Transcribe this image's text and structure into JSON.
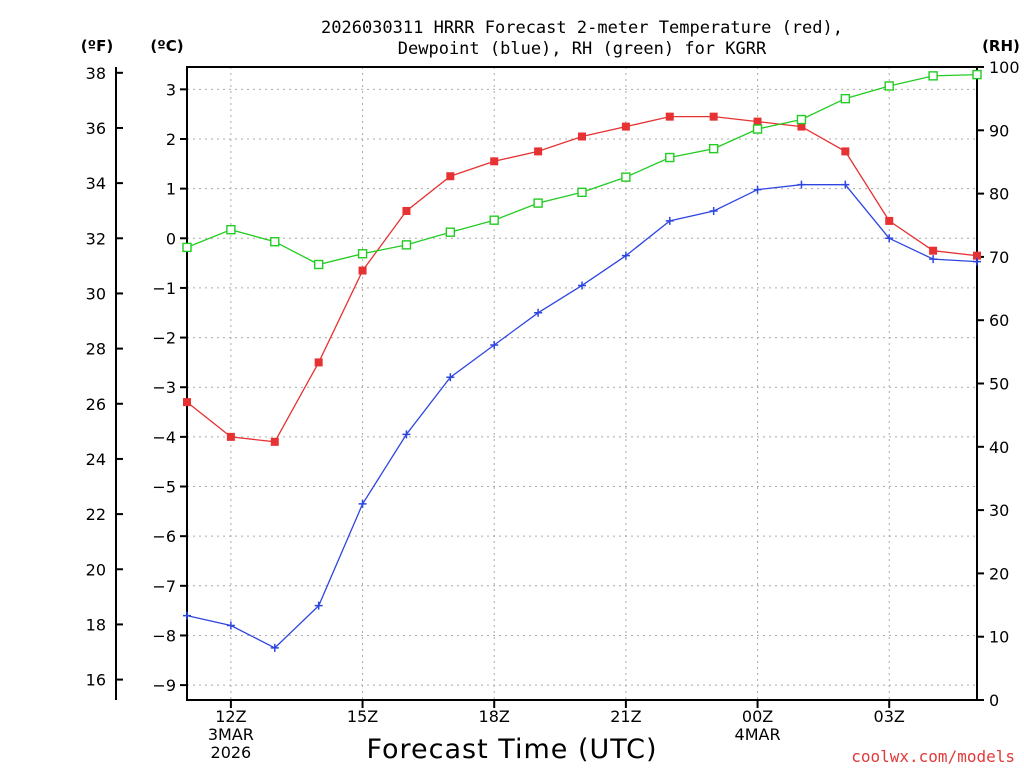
{
  "chart_data": {
    "type": "line",
    "title_lines": [
      "2026030311 HRRR Forecast 2-meter Temperature (red),",
      "Dewpoint (blue), RH (green) for KGRR"
    ],
    "xlabel": "Forecast Time (UTC)",
    "units": {
      "fahrenheit": "(ºF)",
      "celsius": "(ºC)",
      "rh": "(RH)"
    },
    "watermark": "coolwx.com/models",
    "x_hours": [
      11,
      12,
      13,
      14,
      15,
      16,
      17,
      18,
      19,
      20,
      21,
      22,
      23,
      24,
      25,
      26,
      27,
      28,
      29
    ],
    "x_range": [
      11,
      29
    ],
    "x_ticks": [
      {
        "hour": 12,
        "lines": [
          "12Z",
          "3MAR",
          "2026"
        ]
      },
      {
        "hour": 15,
        "lines": [
          "15Z"
        ]
      },
      {
        "hour": 18,
        "lines": [
          "18Z"
        ]
      },
      {
        "hour": 21,
        "lines": [
          "21Z"
        ]
      },
      {
        "hour": 24,
        "lines": [
          "00Z",
          "4MAR"
        ]
      },
      {
        "hour": 27,
        "lines": [
          "03Z"
        ]
      }
    ],
    "y_celsius_range": [
      -9.3,
      3.45
    ],
    "y_celsius_ticks": [
      "3",
      "2",
      "1",
      "0",
      "−1",
      "−2",
      "−3",
      "−4",
      "−5",
      "−6",
      "−7",
      "−8",
      "−9"
    ],
    "y_fahrenheit_ticks": [
      "38",
      "36",
      "34",
      "32",
      "30",
      "28",
      "26",
      "24",
      "22",
      "20",
      "18",
      "16"
    ],
    "y_rh_range": [
      0,
      100
    ],
    "y_rh_ticks": [
      "100",
      "90",
      "80",
      "70",
      "60",
      "50",
      "40",
      "30",
      "20",
      "10",
      "0"
    ],
    "colors": {
      "temperature": "#e63232",
      "dewpoint": "#2e46e0",
      "rh": "#22cc22"
    },
    "series": [
      {
        "name": "Temperature",
        "unit": "C",
        "marker": "filled-square",
        "values": [
          -3.3,
          -4.0,
          -4.1,
          -2.5,
          -0.65,
          0.55,
          1.25,
          1.55,
          1.75,
          2.05,
          2.25,
          2.45,
          2.45,
          2.35,
          2.25,
          1.75,
          0.35,
          -0.25,
          -0.35
        ]
      },
      {
        "name": "Dewpoint",
        "unit": "C",
        "marker": "plus",
        "values": [
          -7.6,
          -7.8,
          -8.25,
          -7.4,
          -5.35,
          -3.95,
          -2.8,
          -2.15,
          -1.5,
          -0.95,
          -0.35,
          0.35,
          0.55,
          0.98,
          1.08,
          1.08,
          0.0,
          -0.42,
          -0.47
        ]
      },
      {
        "name": "RH",
        "unit": "%",
        "marker": "open-square",
        "values": [
          71.5,
          74.3,
          72.4,
          68.8,
          70.5,
          71.9,
          73.9,
          75.8,
          78.5,
          80.2,
          82.6,
          85.7,
          87.1,
          90.2,
          91.7,
          95.0,
          97.0,
          98.6,
          98.8
        ]
      }
    ]
  }
}
